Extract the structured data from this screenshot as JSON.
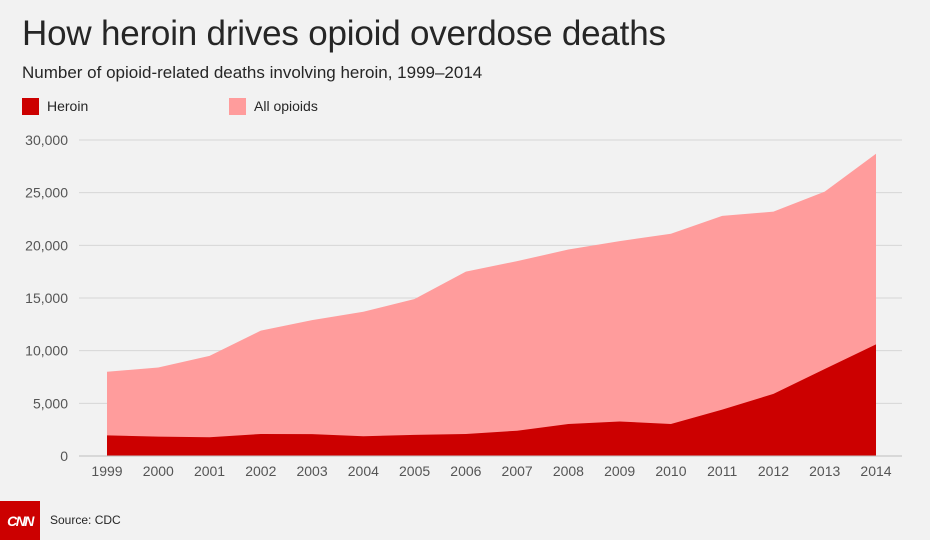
{
  "title": "How heroin drives opioid overdose deaths",
  "subtitle": "Number of opioid-related deaths involving heroin, 1999–2014",
  "legend": [
    {
      "label": "Heroin",
      "color": "#cc0000"
    },
    {
      "label": "All opioids",
      "color": "#ff9c9c"
    }
  ],
  "source": "Source: CDC",
  "logo_text": "CNN",
  "chart_data": {
    "type": "area",
    "title": "How heroin drives opioid overdose deaths",
    "subtitle": "Number of opioid-related deaths involving heroin, 1999–2014",
    "x": [
      "1999",
      "2000",
      "2001",
      "2002",
      "2003",
      "2004",
      "2005",
      "2006",
      "2007",
      "2008",
      "2009",
      "2010",
      "2011",
      "2012",
      "2013",
      "2014"
    ],
    "series": [
      {
        "name": "All opioids",
        "color": "#ff9c9c",
        "values": [
          8000,
          8400,
          9500,
          11900,
          12900,
          13700,
          14900,
          17500,
          18500,
          19600,
          20400,
          21100,
          22800,
          23200,
          25100,
          28700
        ]
      },
      {
        "name": "Heroin",
        "color": "#cc0000",
        "values": [
          1960,
          1840,
          1780,
          2090,
          2080,
          1880,
          2010,
          2090,
          2400,
          3040,
          3280,
          3040,
          4400,
          5900,
          8260,
          10600
        ]
      }
    ],
    "ylim": [
      0,
      30000
    ],
    "yticks": [
      0,
      5000,
      10000,
      15000,
      20000,
      25000,
      30000
    ],
    "ytick_labels": [
      "0",
      "5,000",
      "10,000",
      "15,000",
      "20,000",
      "25,000",
      "30,000"
    ],
    "grid": true,
    "legend_position": "top-left"
  }
}
